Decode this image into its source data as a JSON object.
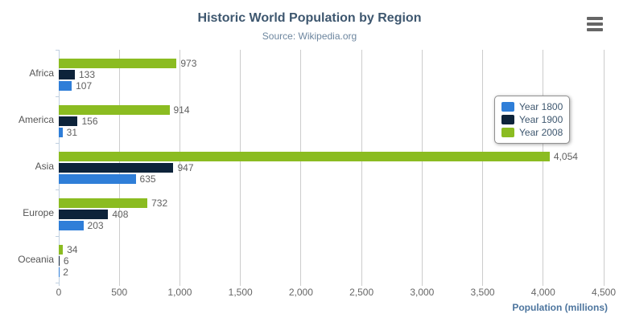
{
  "chart_data": {
    "type": "bar",
    "title": "Historic World Population by Region",
    "subtitle": "Source: Wikipedia.org",
    "xlabel": "Population (millions)",
    "ylabel": "",
    "categories": [
      "Africa",
      "America",
      "Asia",
      "Europe",
      "Oceania"
    ],
    "series": [
      {
        "name": "Year 1800",
        "color": "#2f7ed8",
        "values": [
          107,
          31,
          635,
          203,
          2
        ],
        "labels": [
          "107",
          "31",
          "635",
          "203",
          "2"
        ]
      },
      {
        "name": "Year 1900",
        "color": "#0d233a",
        "values": [
          133,
          156,
          947,
          408,
          6
        ],
        "labels": [
          "133",
          "156",
          "947",
          "408",
          "6"
        ]
      },
      {
        "name": "Year 2008",
        "color": "#8bbc21",
        "values": [
          973,
          914,
          4054,
          732,
          34
        ],
        "labels": [
          "973",
          "914",
          "4,054",
          "732",
          "34"
        ]
      }
    ],
    "series_display_order_top_to_bottom": [
      "Year 2008",
      "Year 1900",
      "Year 1800"
    ],
    "value_axis": {
      "min": 0,
      "max": 4500,
      "tick_interval": 500,
      "tick_labels": [
        "0",
        "500",
        "1,000",
        "1,500",
        "2,000",
        "2,500",
        "3,000",
        "3,500",
        "4,000",
        "4,500"
      ]
    },
    "legend": {
      "position": "right-middle",
      "entries": [
        "Year 1800",
        "Year 1900",
        "Year 2008"
      ]
    },
    "grid": true
  },
  "header": {
    "export_menu_icon": "hamburger-menu-icon"
  },
  "colors": {
    "title": "#3E576F",
    "subtitle": "#6D869F",
    "axis_title": "#4d759e",
    "tick_label": "#666666",
    "category_label": "#555555",
    "data_label": "#606060",
    "grid_line": "#cccccc",
    "axis_line": "#C0D0E0",
    "legend_border": "#909090",
    "legend_text": "#3E576F",
    "menu_icon": "#666666",
    "background": "#ffffff"
  }
}
